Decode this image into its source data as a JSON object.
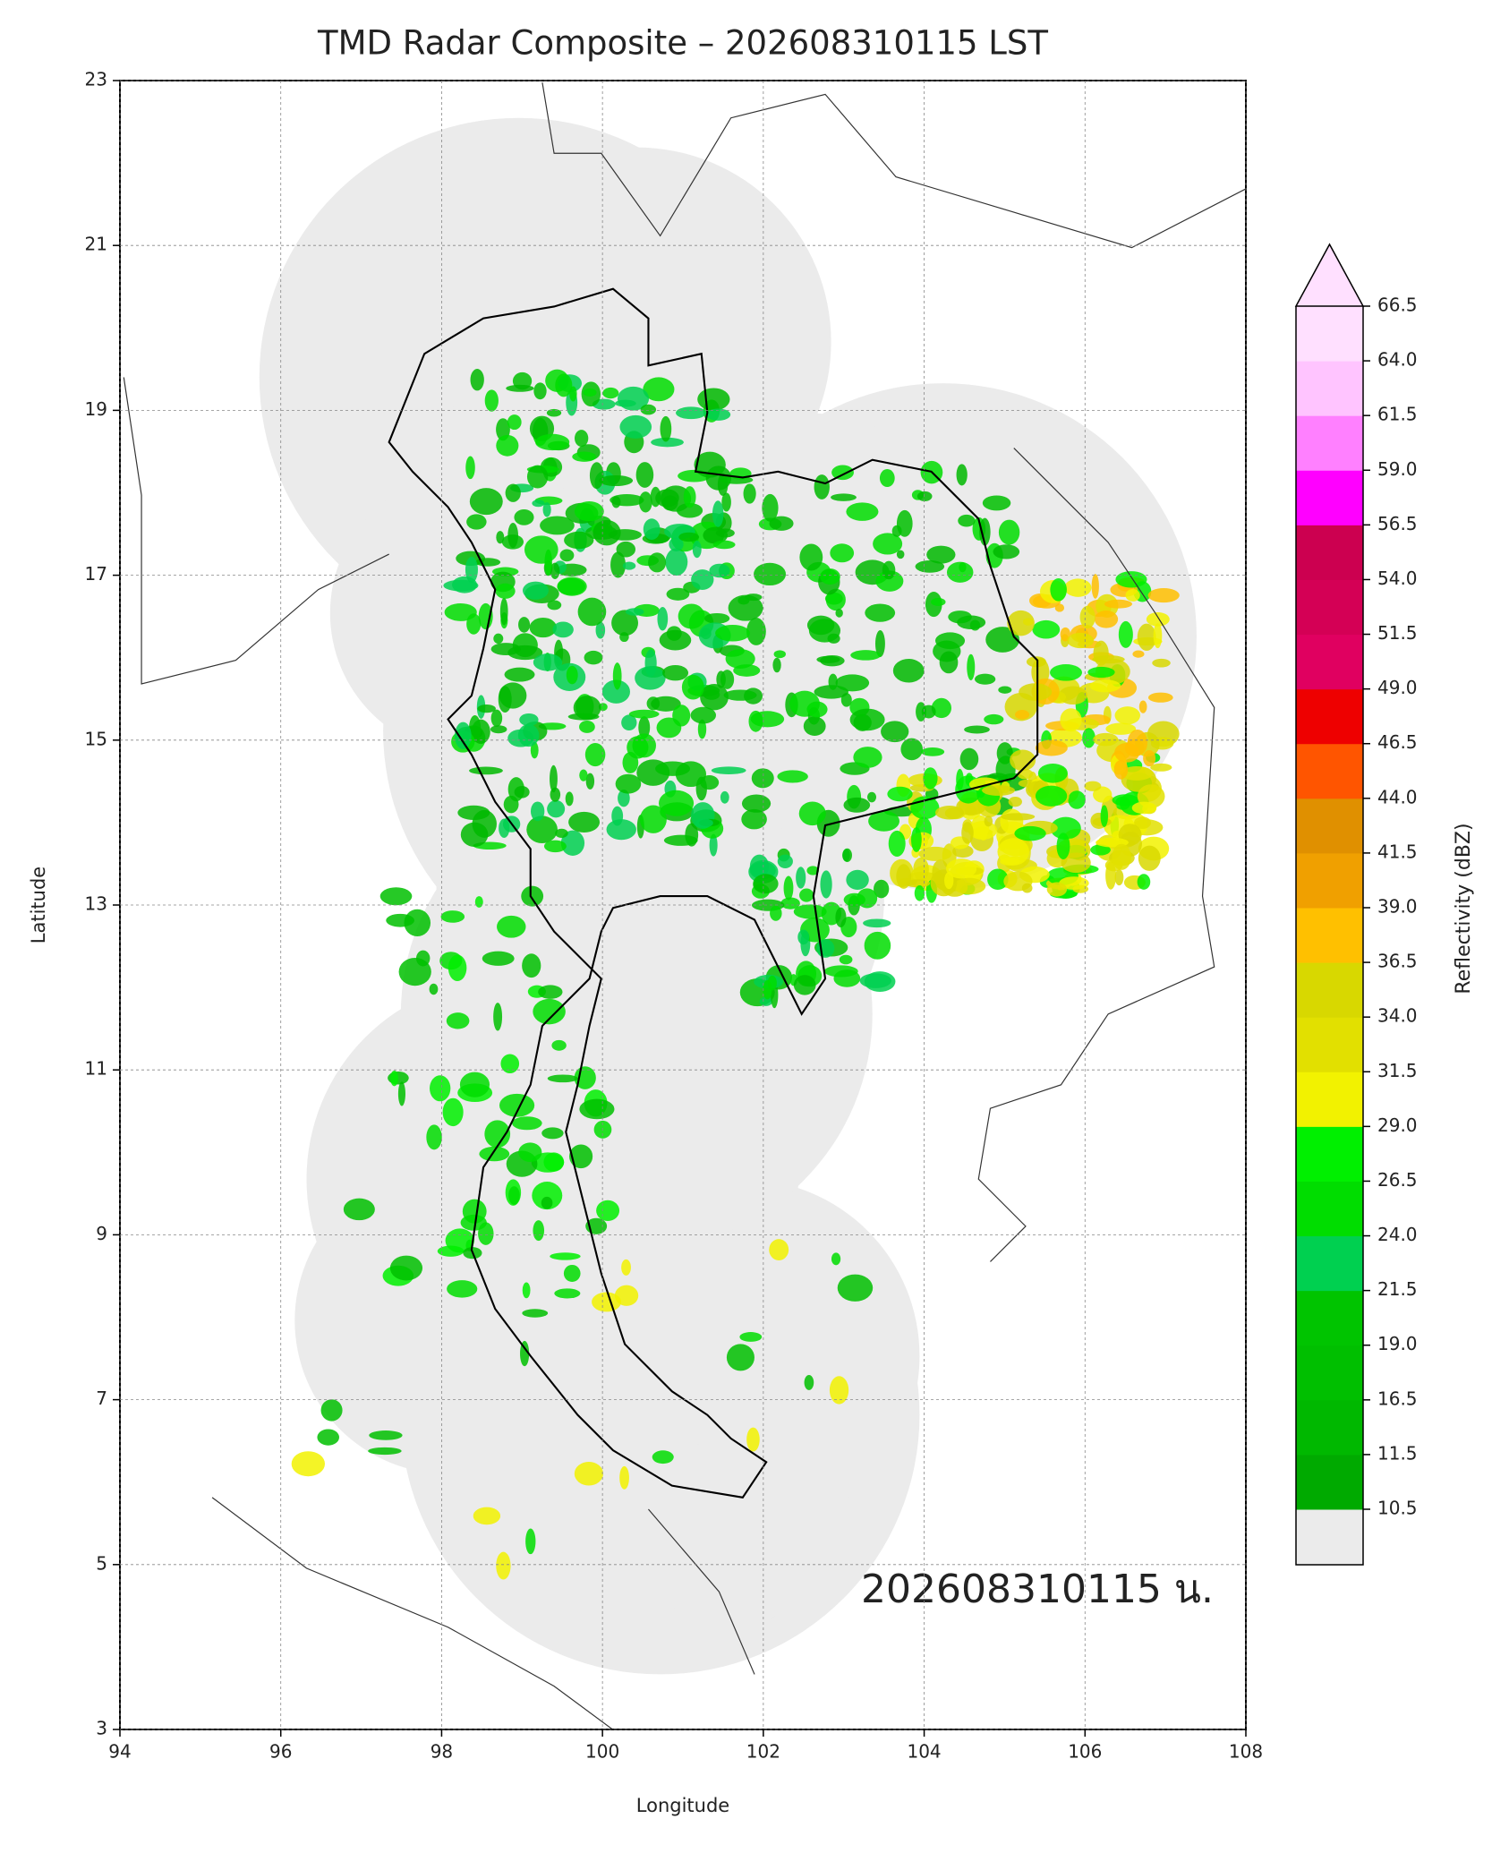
{
  "title": "TMD Radar Composite – 202608310115 LST",
  "annotation": "202608310115 น.",
  "map": {
    "xlabel": "Longitude",
    "ylabel": "Latitude",
    "xlim": [
      94,
      108
    ],
    "ylim": [
      3,
      23
    ],
    "xticks": [
      94,
      96,
      98,
      100,
      102,
      104,
      106,
      108
    ],
    "yticks": [
      3,
      5,
      7,
      9,
      11,
      13,
      15,
      17,
      19,
      21,
      23
    ],
    "grid": true
  },
  "colorbar": {
    "label": "Reflectivity (dBZ)",
    "levels": [
      10.5,
      11.5,
      16.5,
      {
        "value": 19,
        "label": "19.0"
      },
      21.5,
      {
        "value": 24,
        "label": "24.0"
      },
      26.5,
      {
        "value": 29,
        "label": "29.0"
      },
      31.5,
      {
        "value": 34,
        "label": "34.0"
      },
      36.5,
      {
        "value": 39,
        "label": "39.0"
      },
      41.5,
      {
        "value": 44,
        "label": "44.0"
      },
      46.5,
      {
        "value": 49,
        "label": "49.0"
      },
      51.5,
      {
        "value": 54,
        "label": "54.0"
      },
      56.5,
      {
        "value": 59,
        "label": "59.0"
      },
      61.5,
      {
        "value": 64,
        "label": "64.0"
      },
      66.5
    ],
    "colors": [
      "#00aa00",
      "#00b800",
      "#00bf00",
      "#00c400",
      "#00d050",
      "#00dd00",
      "#00f000",
      "#f2f200",
      "#e2e000",
      "#d8d800",
      "#ffc000",
      "#f0a000",
      "#e09000",
      "#ff5500",
      "#ee0000",
      "#e00060",
      "#d40055",
      "#cc0050",
      "#ff00ff",
      "#ff80ff",
      "#ffc4ff",
      "#ffe0ff"
    ],
    "under_color": "#ebebeb",
    "over_color": "#ffe0ff"
  }
}
